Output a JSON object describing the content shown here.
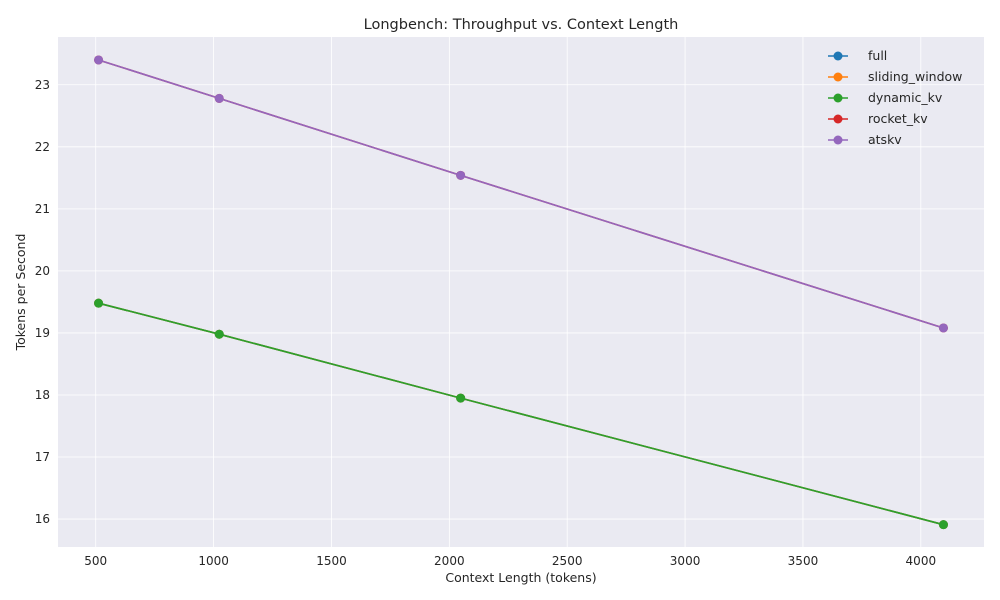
{
  "chart_data": {
    "type": "line",
    "title": "Longbench: Throughput vs. Context Length",
    "xlabel": "Context Length (tokens)",
    "ylabel": "Tokens per Second",
    "x": [
      512,
      1024,
      2048,
      4096
    ],
    "xlim": [
      340,
      4268
    ],
    "ylim": [
      15.55,
      23.77
    ],
    "xticks": [
      500,
      1000,
      1500,
      2000,
      2500,
      3000,
      3500,
      4000
    ],
    "yticks": [
      16,
      17,
      18,
      19,
      20,
      21,
      22,
      23
    ],
    "grid": true,
    "legend_position": "top-right",
    "background": "#eaeaf2",
    "series": [
      {
        "name": "full",
        "color": "#1f77b4",
        "values": [
          19.48,
          18.98,
          17.95,
          15.91
        ]
      },
      {
        "name": "sliding_window",
        "color": "#ff7f0e",
        "values": [
          19.48,
          18.98,
          17.95,
          15.91
        ]
      },
      {
        "name": "dynamic_kv",
        "color": "#2ca02c",
        "values": [
          19.48,
          18.98,
          17.95,
          15.91
        ]
      },
      {
        "name": "rocket_kv",
        "color": "#d62728",
        "values": [
          23.4,
          22.78,
          21.54,
          19.08
        ]
      },
      {
        "name": "atskv",
        "color": "#9467bd",
        "values": [
          23.4,
          22.78,
          21.54,
          19.08
        ]
      }
    ]
  }
}
